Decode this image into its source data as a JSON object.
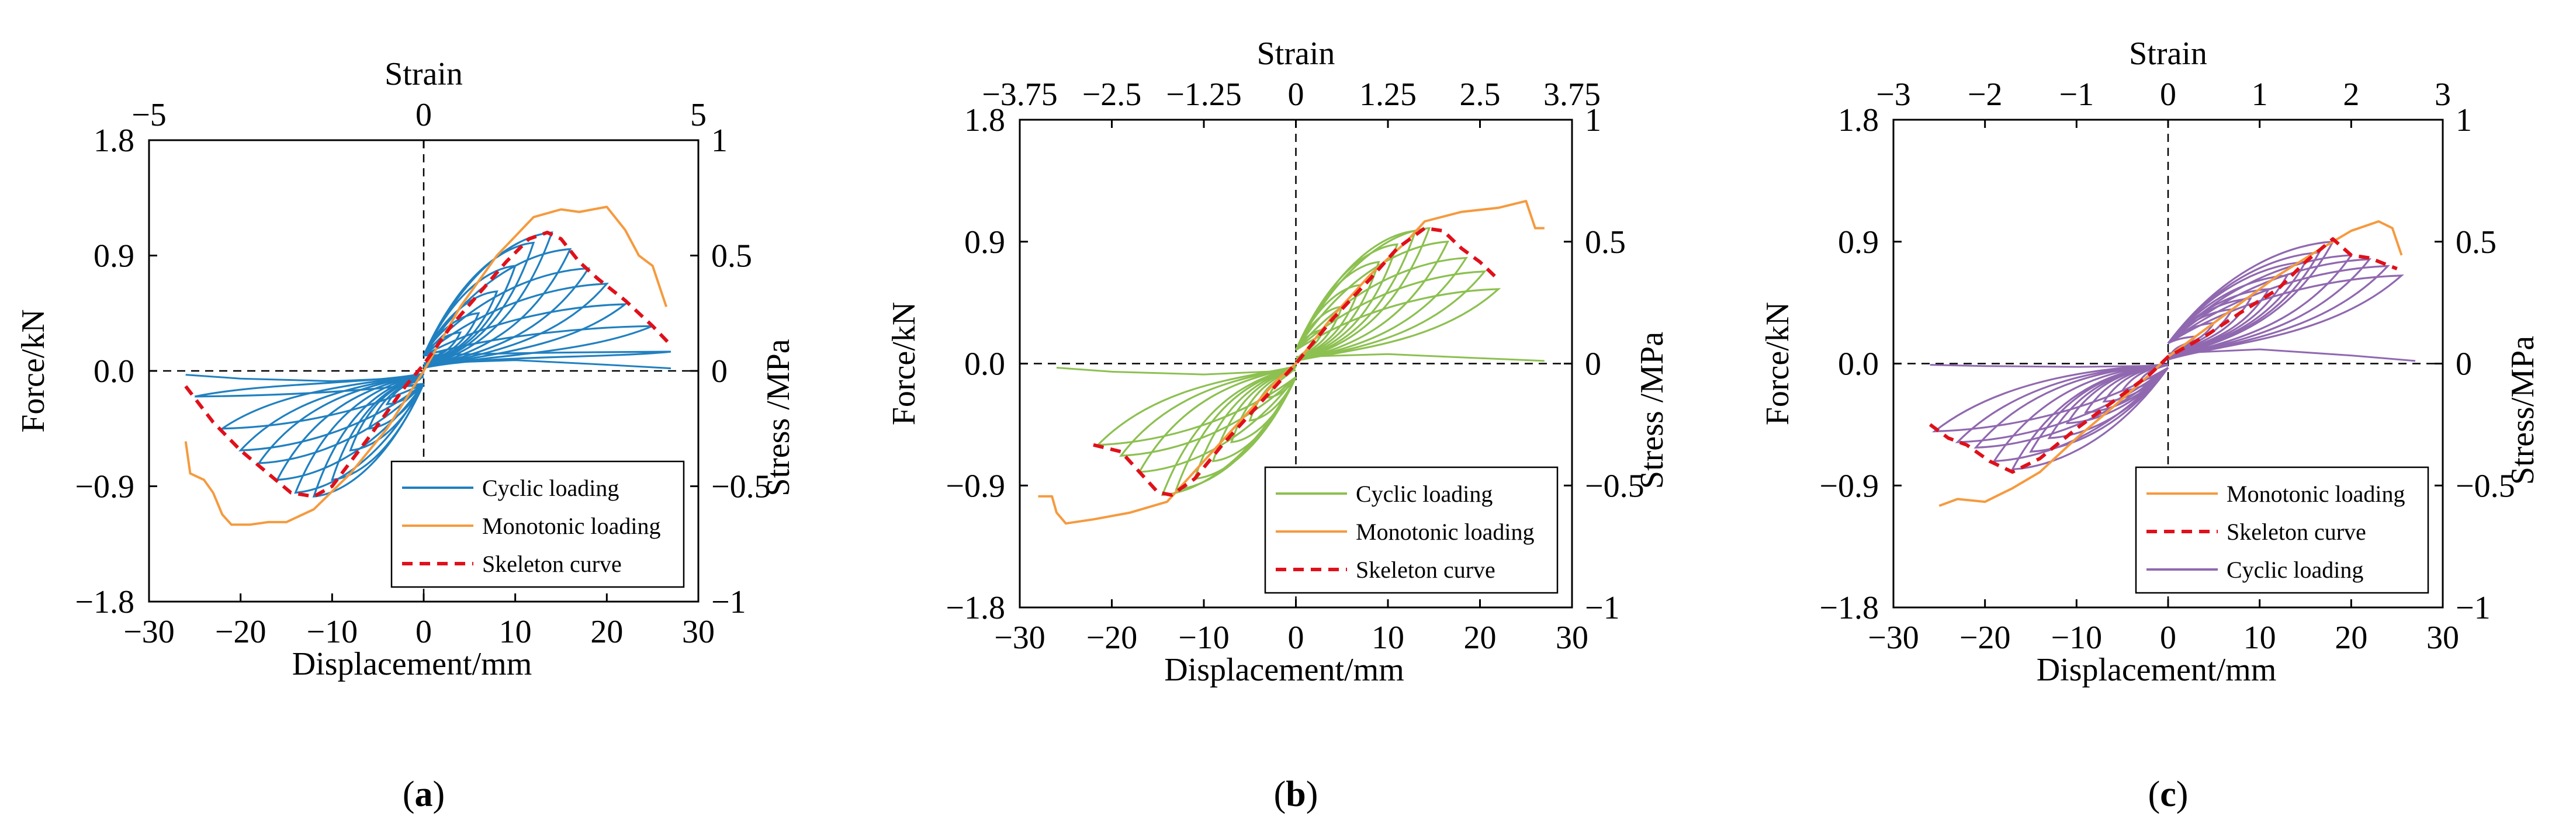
{
  "figure": {
    "colors": {
      "cyclic_a": "#2080c0",
      "cyclic_b": "#8cc050",
      "cyclic_c": "#9068b0",
      "monotonic": "#f59a3e",
      "skeleton": "#e0101a"
    }
  },
  "chart_data": [
    {
      "type": "line",
      "panel_label_open": "(",
      "panel_label": "a",
      "panel_label_close": ")",
      "xlabel": "Displacement/mm",
      "ylabel": "Force/kN",
      "x2label": "Strain",
      "y2label": "Stress /MPa",
      "xlim": [
        -30,
        30
      ],
      "ylim": [
        -1.8,
        1.8
      ],
      "x2lim": [
        -5,
        5
      ],
      "y2lim": [
        -1,
        1
      ],
      "x_ticks": [
        "−30",
        "−20",
        "−10",
        "0",
        "10",
        "20",
        "30"
      ],
      "y_ticks": [
        "−1.8",
        "−0.9",
        "0.0",
        "0.9",
        "1.8"
      ],
      "x2_ticks": [
        "−5",
        "0",
        "5"
      ],
      "y2_ticks": [
        "−1",
        "−0.5",
        "0",
        "0.5",
        "1"
      ],
      "legend": {
        "position": "bottom-right",
        "entries": [
          "Cyclic loading",
          "Monotonic loading",
          "Skeleton curve"
        ]
      },
      "series": [
        {
          "name": "Monotonic loading",
          "style": "monotonic",
          "points": [
            [
              -26,
              -0.55
            ],
            [
              -25.5,
              -0.8
            ],
            [
              -24,
              -0.85
            ],
            [
              -23,
              -0.95
            ],
            [
              -22,
              -1.12
            ],
            [
              -21,
              -1.2
            ],
            [
              -19,
              -1.2
            ],
            [
              -17,
              -1.18
            ],
            [
              -15,
              -1.18
            ],
            [
              -12,
              -1.08
            ],
            [
              -8,
              -0.8
            ],
            [
              -4,
              -0.45
            ],
            [
              0,
              0
            ],
            [
              4,
              0.5
            ],
            [
              8,
              0.9
            ],
            [
              12,
              1.2
            ],
            [
              15,
              1.26
            ],
            [
              17,
              1.24
            ],
            [
              20,
              1.28
            ],
            [
              22,
              1.1
            ],
            [
              23.5,
              0.9
            ],
            [
              25,
              0.82
            ],
            [
              26.5,
              0.5
            ]
          ]
        },
        {
          "name": "Skeleton curve",
          "style": "skeleton",
          "points": [
            [
              -26,
              -0.12
            ],
            [
              -23,
              -0.4
            ],
            [
              -20,
              -0.62
            ],
            [
              -17,
              -0.8
            ],
            [
              -14.5,
              -0.95
            ],
            [
              -12,
              -0.98
            ],
            [
              -10,
              -0.9
            ],
            [
              -6,
              -0.52
            ],
            [
              -2,
              -0.12
            ],
            [
              0,
              0.05
            ],
            [
              3,
              0.35
            ],
            [
              6,
              0.6
            ],
            [
              9,
              0.85
            ],
            [
              11.5,
              1.03
            ],
            [
              13.5,
              1.08
            ],
            [
              15,
              1.03
            ],
            [
              17,
              0.85
            ],
            [
              19,
              0.72
            ],
            [
              22,
              0.55
            ],
            [
              25,
              0.35
            ],
            [
              27,
              0.2
            ]
          ]
        },
        {
          "name": "Cyclic loading",
          "style": "cyclic",
          "kind": "hysteresis",
          "loops": [
            [
              2,
              0.15
            ],
            [
              4,
              0.3
            ],
            [
              6,
              0.45
            ],
            [
              8,
              0.62
            ],
            [
              10,
              0.82
            ],
            [
              12,
              1.0
            ],
            [
              14,
              1.08
            ],
            [
              16,
              0.95
            ],
            [
              18,
              0.8
            ],
            [
              20,
              0.68
            ],
            [
              22,
              0.52
            ],
            [
              25,
              0.35
            ],
            [
              27,
              0.15
            ]
          ],
          "neg_loops": [
            [
              -2,
              -0.12
            ],
            [
              -4,
              -0.26
            ],
            [
              -6,
              -0.45
            ],
            [
              -8,
              -0.62
            ],
            [
              -10,
              -0.85
            ],
            [
              -12,
              -0.98
            ],
            [
              -14,
              -0.95
            ],
            [
              -16,
              -0.85
            ],
            [
              -18,
              -0.72
            ],
            [
              -20,
              -0.62
            ],
            [
              -22,
              -0.45
            ],
            [
              -25,
              -0.2
            ]
          ],
          "return_pos": 0.12,
          "return_neg": -0.1
        }
      ]
    },
    {
      "type": "line",
      "panel_label_open": "(",
      "panel_label": "b",
      "panel_label_close": ")",
      "xlabel": "Displacement/mm",
      "ylabel": "Force/kN",
      "x2label": "Strain",
      "y2label": "Stress /MPa",
      "xlim": [
        -30,
        30
      ],
      "ylim": [
        -1.8,
        1.8
      ],
      "x2lim": [
        -3.75,
        3.75
      ],
      "y2lim": [
        -1,
        1
      ],
      "x_ticks": [
        "−30",
        "−20",
        "−10",
        "0",
        "10",
        "20",
        "30"
      ],
      "y_ticks": [
        "−1.8",
        "−0.9",
        "0.0",
        "0.9",
        "1.8"
      ],
      "x2_ticks": [
        "−3.75",
        "−2.5",
        "−1.25",
        "0",
        "1.25",
        "2.5",
        "3.75"
      ],
      "y2_ticks": [
        "−1",
        "−0.5",
        "0",
        "0.5",
        "1"
      ],
      "legend": {
        "position": "bottom-right",
        "entries": [
          "Cyclic loading",
          "Monotonic loading",
          "Skeleton curve"
        ]
      },
      "series": [
        {
          "name": "Monotonic loading",
          "style": "monotonic",
          "points": [
            [
              -28,
              -0.98
            ],
            [
              -26.5,
              -0.98
            ],
            [
              -26,
              -1.1
            ],
            [
              -25,
              -1.18
            ],
            [
              -22,
              -1.15
            ],
            [
              -18,
              -1.1
            ],
            [
              -14,
              -1.02
            ],
            [
              -10,
              -0.72
            ],
            [
              -6,
              -0.42
            ],
            [
              -2,
              -0.12
            ],
            [
              0,
              0
            ],
            [
              4,
              0.35
            ],
            [
              8,
              0.65
            ],
            [
              12,
              0.9
            ],
            [
              14,
              1.05
            ],
            [
              18,
              1.12
            ],
            [
              22,
              1.15
            ],
            [
              25,
              1.2
            ],
            [
              26,
              1.0
            ],
            [
              27,
              1.0
            ]
          ]
        },
        {
          "name": "Skeleton curve",
          "style": "skeleton",
          "points": [
            [
              -22,
              -0.6
            ],
            [
              -19,
              -0.65
            ],
            [
              -17,
              -0.8
            ],
            [
              -15,
              -0.95
            ],
            [
              -13.5,
              -0.97
            ],
            [
              -11,
              -0.85
            ],
            [
              -8,
              -0.6
            ],
            [
              -4,
              -0.3
            ],
            [
              0,
              0
            ],
            [
              4,
              0.33
            ],
            [
              8,
              0.62
            ],
            [
              11,
              0.85
            ],
            [
              14,
              1.0
            ],
            [
              16,
              0.98
            ],
            [
              18,
              0.85
            ],
            [
              20,
              0.75
            ],
            [
              22,
              0.62
            ]
          ]
        },
        {
          "name": "Cyclic loading",
          "style": "cyclic",
          "kind": "hysteresis",
          "loops": [
            [
              3,
              0.25
            ],
            [
              5,
              0.42
            ],
            [
              7,
              0.58
            ],
            [
              9,
              0.75
            ],
            [
              11,
              0.88
            ],
            [
              13,
              0.98
            ],
            [
              14.5,
              1.0
            ],
            [
              16.5,
              0.9
            ],
            [
              18.5,
              0.78
            ],
            [
              20.5,
              0.68
            ],
            [
              22,
              0.55
            ]
          ],
          "neg_loops": [
            [
              -3,
              -0.25
            ],
            [
              -5,
              -0.42
            ],
            [
              -7,
              -0.58
            ],
            [
              -9,
              -0.72
            ],
            [
              -11,
              -0.85
            ],
            [
              -13,
              -0.93
            ],
            [
              -14.5,
              -0.97
            ],
            [
              -17,
              -0.8
            ],
            [
              -19,
              -0.68
            ],
            [
              -21.5,
              -0.6
            ]
          ],
          "return_pos": 0.1,
          "return_neg": -0.1
        }
      ]
    },
    {
      "type": "line",
      "panel_label_open": "(",
      "panel_label": "c",
      "panel_label_close": ")",
      "xlabel": "Displacement/mm",
      "ylabel": "Force/kN",
      "x2label": "Strain",
      "y2label": "Stress/MPa",
      "xlim": [
        -30,
        30
      ],
      "ylim": [
        -1.8,
        1.8
      ],
      "x2lim": [
        -3,
        3
      ],
      "y2lim": [
        -1,
        1
      ],
      "x_ticks": [
        "−30",
        "−20",
        "−10",
        "0",
        "10",
        "20",
        "30"
      ],
      "y_ticks": [
        "−1.8",
        "−0.9",
        "0.0",
        "0.9",
        "1.8"
      ],
      "x2_ticks": [
        "−3",
        "−2",
        "−1",
        "0",
        "1",
        "2",
        "3"
      ],
      "y2_ticks": [
        "−1",
        "−0.5",
        "0",
        "0.5",
        "1"
      ],
      "legend": {
        "position": "bottom-right",
        "entries": [
          "Monotonic loading",
          "Skeleton curve",
          "Cyclic loading"
        ]
      },
      "series": [
        {
          "name": "Monotonic loading",
          "style": "monotonic",
          "points": [
            [
              -25,
              -1.05
            ],
            [
              -23,
              -1.0
            ],
            [
              -20,
              -1.02
            ],
            [
              -17,
              -0.92
            ],
            [
              -14,
              -0.8
            ],
            [
              -10,
              -0.55
            ],
            [
              -6,
              -0.32
            ],
            [
              -2,
              -0.08
            ],
            [
              0,
              0.05
            ],
            [
              4,
              0.25
            ],
            [
              8,
              0.45
            ],
            [
              12,
              0.65
            ],
            [
              16,
              0.82
            ],
            [
              20,
              0.98
            ],
            [
              23,
              1.05
            ],
            [
              24.5,
              1.0
            ],
            [
              25.5,
              0.8
            ]
          ]
        },
        {
          "name": "Skeleton curve",
          "style": "skeleton",
          "points": [
            [
              -26,
              -0.45
            ],
            [
              -24,
              -0.55
            ],
            [
              -22,
              -0.6
            ],
            [
              -19.5,
              -0.72
            ],
            [
              -17,
              -0.8
            ],
            [
              -14,
              -0.7
            ],
            [
              -10,
              -0.48
            ],
            [
              -6,
              -0.28
            ],
            [
              -2,
              -0.08
            ],
            [
              0,
              0.05
            ],
            [
              4,
              0.2
            ],
            [
              8,
              0.38
            ],
            [
              12,
              0.55
            ],
            [
              15,
              0.75
            ],
            [
              18,
              0.92
            ],
            [
              20,
              0.8
            ],
            [
              22,
              0.78
            ],
            [
              25,
              0.7
            ]
          ]
        },
        {
          "name": "Cyclic loading",
          "style": "cyclic",
          "kind": "hysteresis",
          "loops": [
            [
              3,
              0.2
            ],
            [
              5,
              0.3
            ],
            [
              7,
              0.4
            ],
            [
              9,
              0.48
            ],
            [
              11,
              0.55
            ],
            [
              13,
              0.65
            ],
            [
              15,
              0.75
            ],
            [
              16.5,
              0.82
            ],
            [
              18,
              0.9
            ],
            [
              20,
              0.8
            ],
            [
              22,
              0.77
            ],
            [
              24,
              0.72
            ],
            [
              25.5,
              0.65
            ]
          ],
          "neg_loops": [
            [
              -3,
              -0.12
            ],
            [
              -5,
              -0.2
            ],
            [
              -7,
              -0.28
            ],
            [
              -9,
              -0.36
            ],
            [
              -11,
              -0.44
            ],
            [
              -13,
              -0.55
            ],
            [
              -15,
              -0.65
            ],
            [
              -17,
              -0.78
            ],
            [
              -19,
              -0.72
            ],
            [
              -21,
              -0.62
            ],
            [
              -23,
              -0.58
            ],
            [
              -25.5,
              -0.5
            ]
          ],
          "return_pos": 0.15,
          "return_neg": -0.03
        }
      ]
    }
  ]
}
